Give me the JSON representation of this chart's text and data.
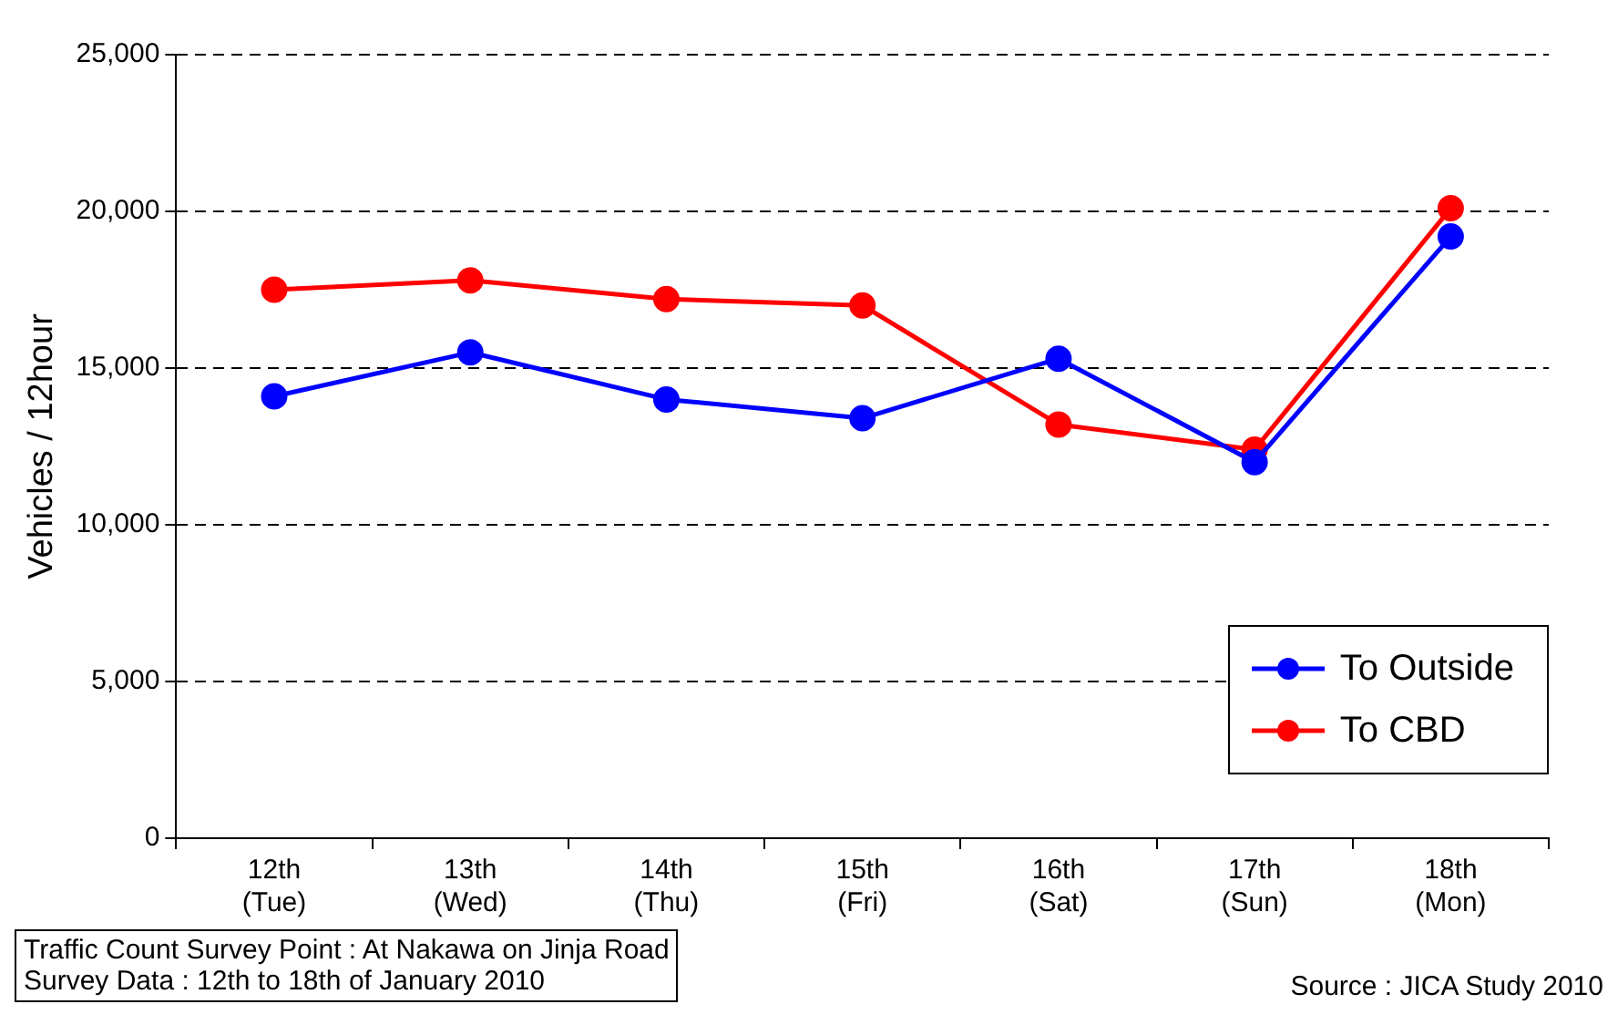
{
  "chart_data": {
    "type": "line",
    "ylabel": "Vehicles / 12hour",
    "categories": [
      "12th\n(Tue)",
      "13th\n(Wed)",
      "14th\n(Thu)",
      "15th\n(Fri)",
      "16th\n(Sat)",
      "17th\n(Sun)",
      "18th\n(Mon)"
    ],
    "series": [
      {
        "name": "To Outside",
        "color": "#0000ff",
        "values": [
          14100,
          15500,
          14000,
          13400,
          15300,
          12000,
          19200
        ]
      },
      {
        "name": "To CBD",
        "color": "#ff0000",
        "values": [
          17500,
          17800,
          17200,
          17000,
          13200,
          12400,
          20100
        ]
      }
    ],
    "ylim": [
      0,
      25000
    ],
    "yticks": [
      {
        "value": 0,
        "label": "0"
      },
      {
        "value": 5000,
        "label": "5,000"
      },
      {
        "value": 10000,
        "label": "10,000"
      },
      {
        "value": 15000,
        "label": "15,000"
      },
      {
        "value": 20000,
        "label": "20,000"
      },
      {
        "value": 25000,
        "label": "25,000"
      }
    ],
    "grid": "y",
    "legend": "bottom right",
    "marker": "circle",
    "line_style": "solid",
    "annotations": [
      "Traffic Count Survey Point : At Nakawa on Jinja Road\nSurvey Data : 12th to 18th of January 2010",
      "Source : JICA Study 2010"
    ]
  }
}
